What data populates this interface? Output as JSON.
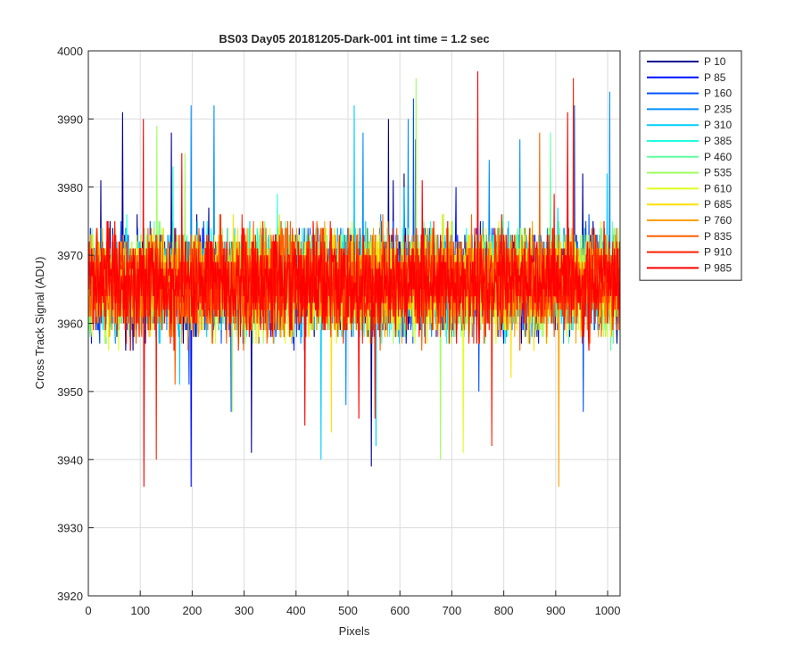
{
  "chart_data": {
    "type": "line",
    "title": "BS03 Day05 20181205-Dark-001 int time = 1.2 sec",
    "xlabel": "Pixels",
    "ylabel": "Cross Track Signal (ADU)",
    "xlim": [
      0,
      1024
    ],
    "ylim": [
      3920,
      4000
    ],
    "xticks": [
      0,
      100,
      200,
      300,
      400,
      500,
      600,
      700,
      800,
      900,
      1000
    ],
    "yticks": [
      3920,
      3930,
      3940,
      3950,
      3960,
      3970,
      3980,
      3990,
      4000
    ],
    "grid": true,
    "legend_placement": "outside-right",
    "series": [
      {
        "name": "P 10",
        "color": "#00008f",
        "mean": 3966,
        "spread": 9
      },
      {
        "name": "P 85",
        "color": "#0010ff",
        "mean": 3966,
        "spread": 9
      },
      {
        "name": "P 160",
        "color": "#0050ff",
        "mean": 3966,
        "spread": 9
      },
      {
        "name": "P 235",
        "color": "#0090ff",
        "mean": 3966,
        "spread": 9
      },
      {
        "name": "P 310",
        "color": "#00d0ff",
        "mean": 3966,
        "spread": 9
      },
      {
        "name": "P 385",
        "color": "#20ffdf",
        "mean": 3966,
        "spread": 9
      },
      {
        "name": "P 460",
        "color": "#60ff9f",
        "mean": 3966,
        "spread": 9
      },
      {
        "name": "P 535",
        "color": "#9fff60",
        "mean": 3966,
        "spread": 9
      },
      {
        "name": "P 610",
        "color": "#dfff20",
        "mean": 3966,
        "spread": 9
      },
      {
        "name": "P 685",
        "color": "#ffe000",
        "mean": 3966,
        "spread": 9
      },
      {
        "name": "P 760",
        "color": "#ffa000",
        "mean": 3966,
        "spread": 9
      },
      {
        "name": "P 835",
        "color": "#ff6000",
        "mean": 3966,
        "spread": 9
      },
      {
        "name": "P 910",
        "color": "#ff2000",
        "mean": 3966,
        "spread": 9
      },
      {
        "name": "P 985",
        "color": "#ff0000",
        "mean": 3966,
        "spread": 9
      }
    ]
  }
}
